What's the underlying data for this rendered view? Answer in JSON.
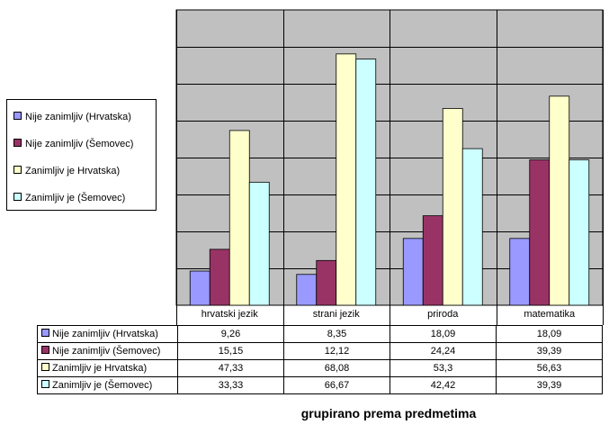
{
  "chart_data": {
    "type": "bar",
    "categories": [
      "hrvatski jezik",
      "strani jezik",
      "priroda",
      "matematika"
    ],
    "series": [
      {
        "name": "Nije zanimljiv (Hrvatska)",
        "values": [
          9.26,
          8.35,
          18.09,
          18.09
        ],
        "value_labels": [
          "9,26",
          "8,35",
          "18,09",
          "18,09"
        ],
        "color": "#9999FF"
      },
      {
        "name": "Nije zanimljiv (Šemovec)",
        "values": [
          15.15,
          12.12,
          24.24,
          39.39
        ],
        "value_labels": [
          "15,15",
          "12,12",
          "24,24",
          "39,39"
        ],
        "color": "#993366"
      },
      {
        "name": "Zanimljiv je Hrvatska)",
        "values": [
          47.33,
          68.08,
          53.3,
          56.63
        ],
        "value_labels": [
          "47,33",
          "68,08",
          "53,3",
          "56,63"
        ],
        "color": "#FFFFCC"
      },
      {
        "name": "Zanimljiv je (Šemovec)",
        "values": [
          33.33,
          66.67,
          42.42,
          39.39
        ],
        "value_labels": [
          "33,33",
          "66,67",
          "42,42",
          "39,39"
        ],
        "color": "#CCFFFF"
      }
    ],
    "xlabel": "grupirano prema predmetima",
    "ylabel": "",
    "ylim": [
      0,
      80
    ],
    "grid": true,
    "plot_background": "#C0C0C0",
    "legend_position": "left",
    "data_table": true
  }
}
